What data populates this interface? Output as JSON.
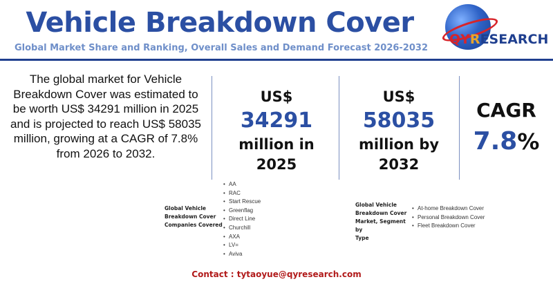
{
  "header": {
    "title": "Vehicle Breakdown Cover",
    "subtitle": "Global Market Share and Ranking, Overall Sales and Demand Forecast 2026-2032"
  },
  "logo": {
    "text_q": "Q",
    "text_y": "Y",
    "text_r": "R",
    "text_rest": "ESEARCH"
  },
  "description": "The global market for Vehicle Breakdown Cover was estimated to be worth US$ 34291 million in 2025 and is projected to reach US$ 58035 million, growing at a CAGR of 7.8% from 2026 to 2032.",
  "stats": {
    "stat1": {
      "prefix": "US$",
      "value": "34291",
      "suffix_1": "million in",
      "suffix_2": "2025"
    },
    "stat2": {
      "prefix": "US$",
      "value": "58035",
      "suffix_1": "million by",
      "suffix_2": "2032"
    },
    "cagr": {
      "label": "CAGR",
      "value": "7.8",
      "unit": "%"
    }
  },
  "companies": {
    "label_line1": "Global Vehicle",
    "label_line2": "Breakdown Cover",
    "label_line3": "Companies Covered",
    "items": [
      "AA",
      "RAC",
      "Start Rescue",
      "Greenflag",
      "Direct Line",
      "Churchill",
      "AXA",
      "LV=",
      "Aviva"
    ]
  },
  "segments": {
    "label_line1": "Global Vehicle",
    "label_line2": "Breakdown Cover",
    "label_line3": "Market, Segment by",
    "label_line4": "Type",
    "items": [
      "At-home Breakdown Cover",
      "Personal Breakdown Cover",
      "Fleet Breakdown Cover"
    ]
  },
  "contact": "Contact : tytaoyue@qyresearch.com"
}
